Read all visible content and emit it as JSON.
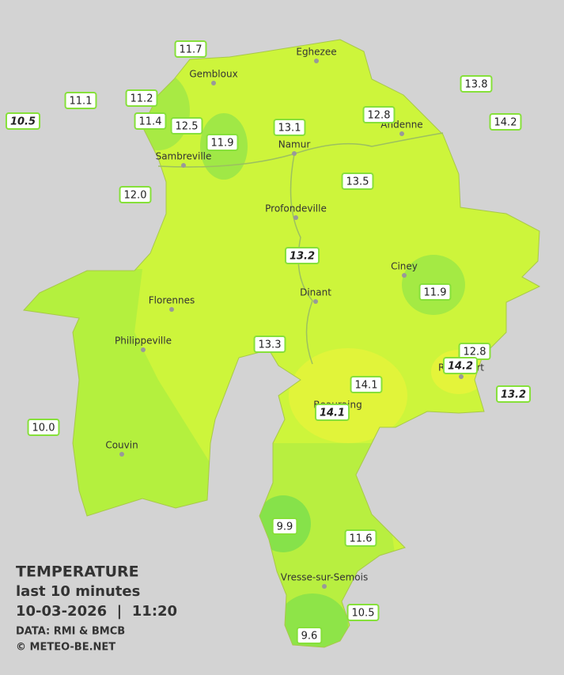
{
  "legend": {
    "title": "TEMPERATURE",
    "period": "last 10 minutes",
    "datetime": "10-03-2026  |  11:20",
    "source": "DATA: RMI & BMCB",
    "copyright": "© METEO-BE.NET"
  },
  "cities": [
    "Eghezee",
    "Gembloux",
    "Andenne",
    "Namur",
    "Sambreville",
    "Profondeville",
    "Ciney",
    "Dinant",
    "Florennes",
    "Philippeville",
    "Rochefort",
    "Beauraing",
    "Couvin",
    "Vresse-sur-Semois"
  ],
  "stations": [
    {
      "reading": "11.7"
    },
    {
      "reading": "11.1"
    },
    {
      "reading": "11.2"
    },
    {
      "reading": "10.5",
      "italic": true
    },
    {
      "reading": "11.4"
    },
    {
      "reading": "12.5"
    },
    {
      "reading": "11.9"
    },
    {
      "reading": "13.1"
    },
    {
      "reading": "12.8"
    },
    {
      "reading": "13.8"
    },
    {
      "reading": "14.2"
    },
    {
      "reading": "12.0"
    },
    {
      "reading": "13.5"
    },
    {
      "reading": "13.2",
      "italic": true
    },
    {
      "reading": "11.9"
    },
    {
      "reading": "13.3"
    },
    {
      "reading": "12.8"
    },
    {
      "reading": "14.2",
      "italic": true
    },
    {
      "reading": "14.1"
    },
    {
      "reading": "13.2",
      "italic": true
    },
    {
      "reading": "14.1",
      "italic": true
    },
    {
      "reading": "10.0"
    },
    {
      "reading": "9.9"
    },
    {
      "reading": "11.6"
    },
    {
      "reading": "10.5"
    },
    {
      "reading": "9.6"
    }
  ]
}
